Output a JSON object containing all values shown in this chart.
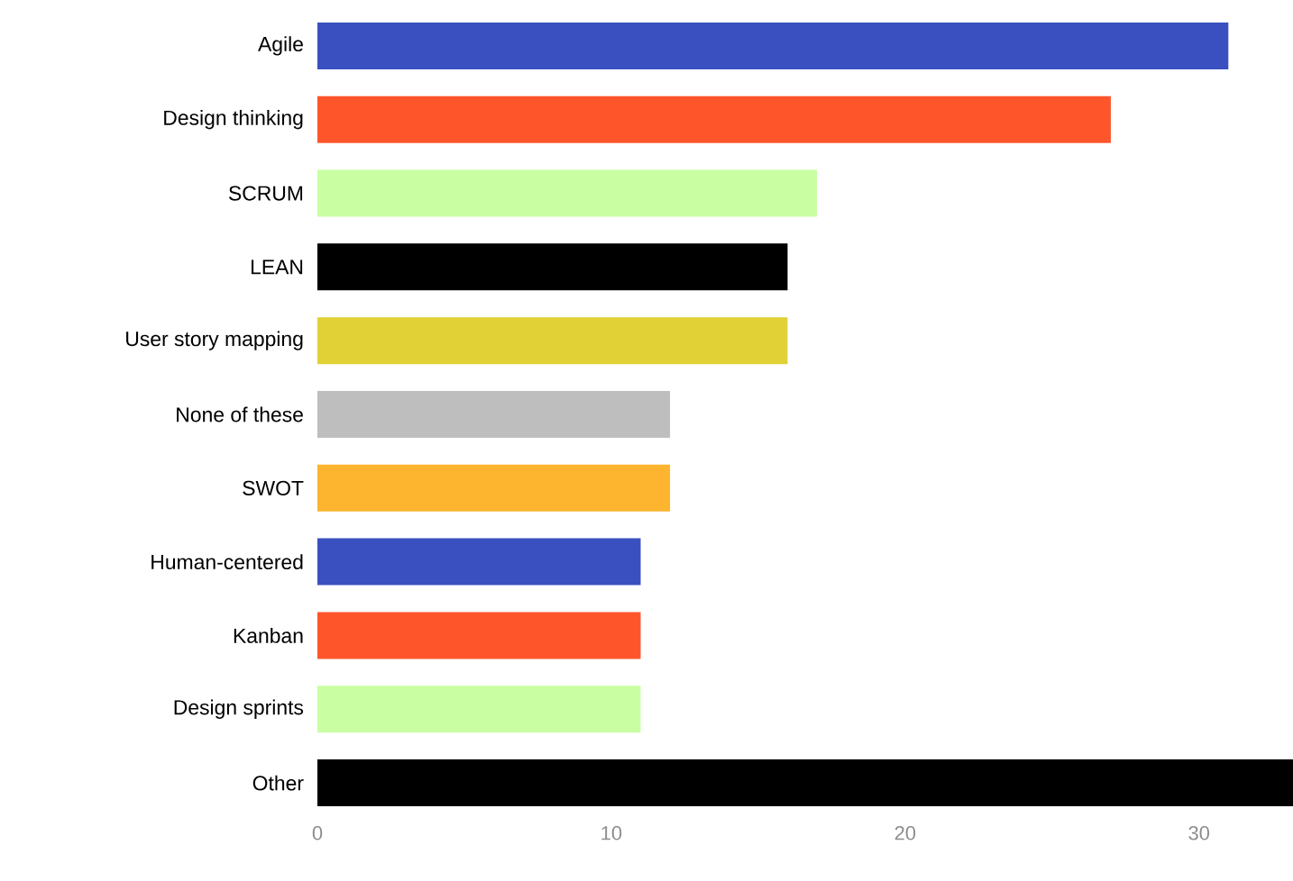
{
  "chart_data": {
    "type": "bar",
    "orientation": "horizontal",
    "categories": [
      "Agile",
      "Design thinking",
      "SCRUM",
      "LEAN",
      "User story mapping",
      "None of these",
      "SWOT",
      "Human-centered",
      "Kanban",
      "Design sprints",
      "Other"
    ],
    "values": [
      31,
      27,
      17,
      16,
      16,
      12,
      12,
      11,
      11,
      11,
      33.2
    ],
    "colors": [
      "#3a50c0",
      "#fe552a",
      "#c9ffa2",
      "#000000",
      "#e1d136",
      "#bebebe",
      "#fdb52f",
      "#3a50c0",
      "#fe552a",
      "#c9ffa2",
      "#000000"
    ],
    "xlim": [
      0,
      33.2
    ],
    "xticks": [
      0,
      10,
      20,
      30
    ]
  }
}
